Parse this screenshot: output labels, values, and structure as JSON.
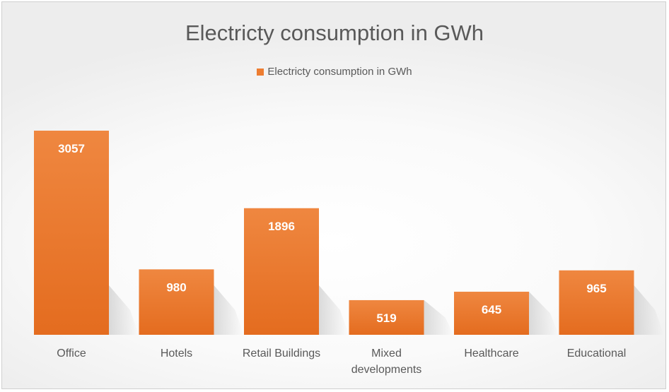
{
  "chart_data": {
    "type": "bar",
    "title": "Electricty consumption in GWh",
    "categories": [
      "Office",
      "Hotels",
      "Retail Buildings",
      "Mixed developments",
      "Healthcare",
      "Educational"
    ],
    "series": [
      {
        "name": "Electricty consumption in GWh",
        "values": [
          3057,
          980,
          1896,
          519,
          645,
          965
        ],
        "color": "#ed7d31"
      }
    ],
    "ylim": [
      0,
      3057
    ],
    "grid": false,
    "legend": "top"
  }
}
